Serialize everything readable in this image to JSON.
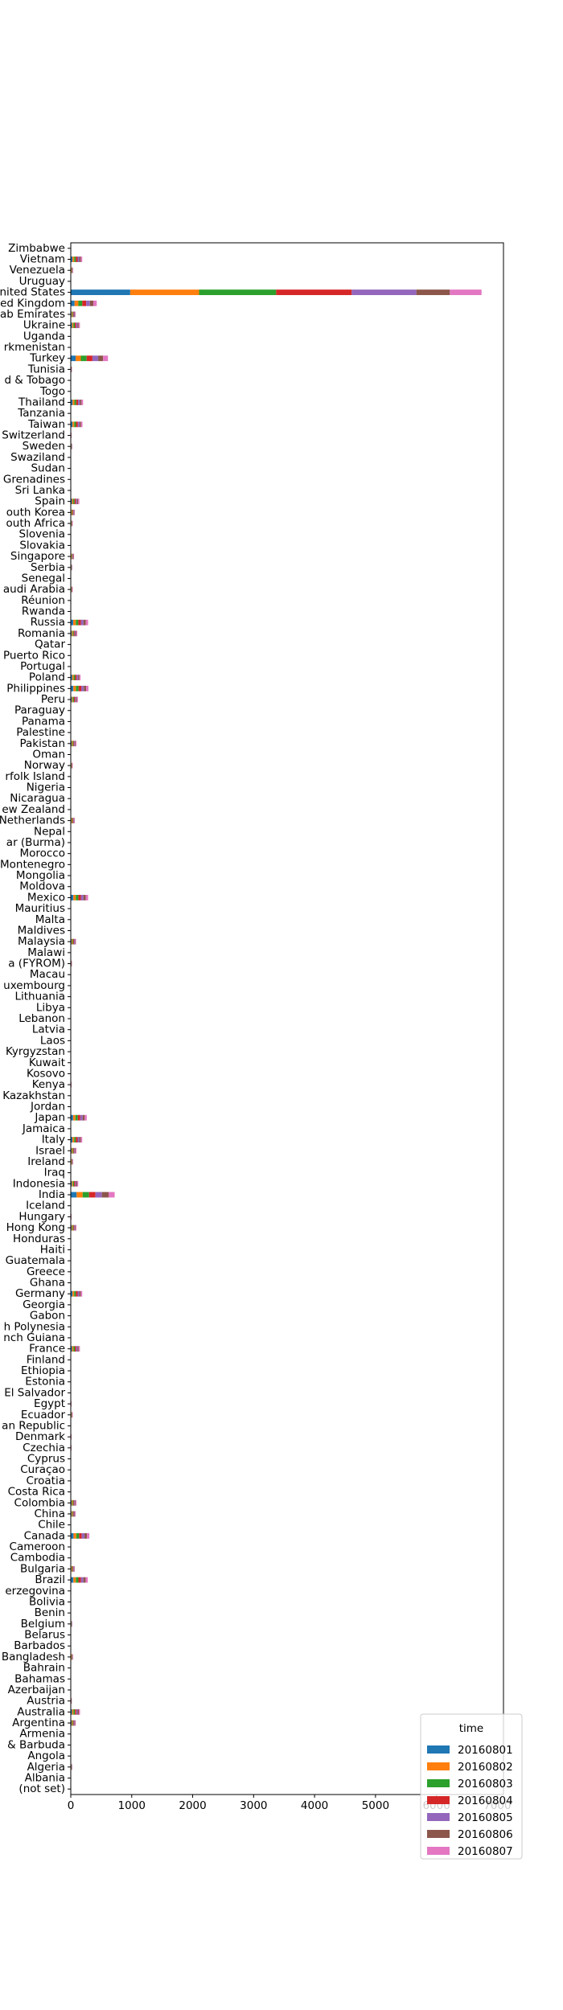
{
  "chart_data": {
    "type": "bar",
    "orientation": "horizontal",
    "stacked": true,
    "xlim": [
      0,
      7100
    ],
    "xticks": [
      0,
      1000,
      2000,
      3000,
      4000,
      5000,
      6000,
      7000
    ],
    "xtick_labels": [
      "0",
      "1000",
      "2000",
      "3000",
      "4000",
      "5000",
      "6000",
      "7000"
    ],
    "grid": false,
    "legend_position": "bottom-right",
    "legend_title": "time",
    "categories": [
      "(not set)",
      "Albania",
      "Algeria",
      "Angola",
      "& Barbuda",
      "Armenia",
      "Argentina",
      "Australia",
      "Austria",
      "Azerbaijan",
      "Bahamas",
      "Bahrain",
      "Bangladesh",
      "Barbados",
      "Belarus",
      "Belgium",
      "Benin",
      "Bolivia",
      "erzegovina",
      "Brazil",
      "Bulgaria",
      "Cambodia",
      "Cameroon",
      "Canada",
      "Chile",
      "China",
      "Colombia",
      "Costa Rica",
      "Croatia",
      "Curaçao",
      "Cyprus",
      "Czechia",
      "Denmark",
      "an Republic",
      "Ecuador",
      "Egypt",
      "El Salvador",
      "Estonia",
      "Ethiopia",
      "Finland",
      "France",
      "nch Guiana",
      "h Polynesia",
      "Gabon",
      "Georgia",
      "Germany",
      "Ghana",
      "Greece",
      "Guatemala",
      "Haiti",
      "Honduras",
      "Hong Kong",
      "Hungary",
      "Iceland",
      "India",
      "Indonesia",
      "Iraq",
      "Ireland",
      "Israel",
      "Italy",
      "Jamaica",
      "Japan",
      "Jordan",
      "Kazakhstan",
      "Kenya",
      "Kosovo",
      "Kuwait",
      "Kyrgyzstan",
      "Laos",
      "Latvia",
      "Lebanon",
      "Libya",
      "Lithuania",
      "uxembourg",
      "Macau",
      "a (FYROM)",
      "Malawi",
      "Malaysia",
      "Maldives",
      "Malta",
      "Mauritius",
      "Mexico",
      "Moldova",
      "Mongolia",
      "Montenegro",
      "Morocco",
      "ar (Burma)",
      "Nepal",
      "Netherlands",
      "ew Zealand",
      "Nicaragua",
      "Nigeria",
      "rfolk Island",
      "Norway",
      "Oman",
      "Pakistan",
      "Palestine",
      "Panama",
      "Paraguay",
      "Peru",
      "Philippines",
      "Poland",
      "Portugal",
      "Puerto Rico",
      "Qatar",
      "Romania",
      "Russia",
      "Rwanda",
      "Réunion",
      "audi Arabia",
      "Senegal",
      "Serbia",
      "Singapore",
      "Slovakia",
      "Slovenia",
      "outh Africa",
      "outh Korea",
      "Spain",
      "Sri Lanka",
      "Grenadines",
      "Sudan",
      "Swaziland",
      "Sweden",
      "Switzerland",
      "Taiwan",
      "Tanzania",
      "Thailand",
      "Togo",
      "d & Tobago",
      "Tunisia",
      "Turkey",
      "rkmenistan",
      "Uganda",
      "Ukraine",
      "ab Emirates",
      "ed Kingdom",
      "nited States",
      "Uruguay",
      "Venezuela",
      "Vietnam",
      "Zimbabwe"
    ],
    "series": [
      {
        "name": "20160801",
        "color": "#1f77b4",
        "values": [
          1,
          1,
          4,
          0,
          0,
          1,
          14,
          22,
          3,
          0,
          0,
          0,
          6,
          0,
          1,
          4,
          0,
          1,
          1,
          43,
          10,
          0,
          1,
          45,
          1,
          12,
          14,
          1,
          1,
          0,
          1,
          2,
          2,
          1,
          5,
          2,
          0,
          1,
          0,
          1,
          22,
          0,
          0,
          0,
          0,
          28,
          1,
          1,
          1,
          0,
          0,
          14,
          2,
          1,
          95,
          18,
          1,
          6,
          14,
          28,
          1,
          38,
          0,
          0,
          2,
          0,
          1,
          0,
          0,
          0,
          0,
          0,
          1,
          0,
          1,
          3,
          0,
          13,
          0,
          0,
          0,
          42,
          0,
          0,
          0,
          1,
          0,
          0,
          10,
          1,
          0,
          1,
          0,
          5,
          0,
          14,
          0,
          0,
          0,
          18,
          42,
          24,
          1,
          1,
          0,
          16,
          40,
          0,
          1,
          5,
          0,
          4,
          8,
          1,
          1,
          5,
          10,
          20,
          1,
          0,
          0,
          0,
          4,
          2,
          28,
          0,
          30,
          0,
          0,
          3,
          80,
          0,
          0,
          22,
          12,
          62,
          975,
          1,
          6,
          28,
          1
        ]
      },
      {
        "name": "20160802",
        "color": "#ff7f0e",
        "values": [
          1,
          1,
          4,
          0,
          0,
          1,
          12,
          22,
          3,
          0,
          0,
          0,
          6,
          0,
          1,
          4,
          0,
          1,
          1,
          40,
          10,
          0,
          1,
          45,
          1,
          12,
          14,
          1,
          1,
          0,
          1,
          2,
          2,
          1,
          5,
          2,
          0,
          1,
          0,
          1,
          22,
          0,
          0,
          0,
          0,
          28,
          1,
          1,
          1,
          0,
          0,
          14,
          2,
          1,
          100,
          18,
          1,
          6,
          14,
          28,
          1,
          38,
          0,
          0,
          2,
          0,
          1,
          0,
          0,
          0,
          0,
          0,
          1,
          0,
          1,
          3,
          0,
          13,
          0,
          0,
          0,
          40,
          0,
          0,
          0,
          1,
          0,
          0,
          10,
          1,
          0,
          1,
          0,
          5,
          0,
          14,
          0,
          0,
          0,
          16,
          42,
          24,
          1,
          1,
          0,
          16,
          42,
          0,
          1,
          5,
          0,
          4,
          8,
          1,
          1,
          5,
          10,
          20,
          1,
          0,
          0,
          0,
          4,
          2,
          28,
          0,
          30,
          0,
          0,
          3,
          85,
          0,
          0,
          22,
          12,
          62,
          1130,
          1,
          6,
          28,
          1
        ]
      },
      {
        "name": "20160803",
        "color": "#2ca02c",
        "values": [
          1,
          1,
          4,
          0,
          0,
          1,
          12,
          24,
          3,
          0,
          0,
          0,
          6,
          0,
          1,
          4,
          0,
          1,
          1,
          42,
          10,
          0,
          1,
          45,
          1,
          12,
          14,
          1,
          1,
          0,
          1,
          2,
          2,
          1,
          5,
          2,
          0,
          1,
          0,
          1,
          22,
          0,
          0,
          0,
          0,
          28,
          1,
          1,
          1,
          0,
          0,
          14,
          2,
          1,
          105,
          18,
          1,
          6,
          14,
          28,
          1,
          40,
          0,
          0,
          2,
          0,
          1,
          0,
          0,
          0,
          0,
          0,
          1,
          0,
          1,
          3,
          0,
          13,
          0,
          0,
          0,
          42,
          0,
          0,
          0,
          1,
          0,
          0,
          10,
          1,
          0,
          1,
          0,
          5,
          0,
          14,
          0,
          0,
          0,
          18,
          44,
          24,
          1,
          1,
          0,
          16,
          42,
          0,
          1,
          5,
          0,
          4,
          8,
          1,
          1,
          5,
          10,
          22,
          1,
          0,
          0,
          0,
          4,
          2,
          30,
          0,
          30,
          0,
          0,
          3,
          95,
          0,
          0,
          22,
          12,
          64,
          1265,
          1,
          6,
          28,
          1
        ]
      },
      {
        "name": "20160804",
        "color": "#d62728",
        "values": [
          1,
          1,
          4,
          0,
          0,
          1,
          12,
          22,
          3,
          0,
          0,
          0,
          6,
          0,
          1,
          4,
          0,
          1,
          1,
          42,
          10,
          0,
          1,
          45,
          1,
          12,
          14,
          1,
          1,
          0,
          1,
          2,
          2,
          1,
          5,
          2,
          0,
          1,
          0,
          1,
          22,
          0,
          0,
          0,
          0,
          28,
          1,
          1,
          1,
          0,
          0,
          14,
          2,
          1,
          105,
          18,
          1,
          6,
          14,
          28,
          1,
          40,
          0,
          0,
          2,
          0,
          1,
          0,
          0,
          0,
          0,
          0,
          1,
          0,
          1,
          3,
          0,
          13,
          0,
          0,
          0,
          42,
          0,
          0,
          0,
          1,
          0,
          0,
          10,
          1,
          0,
          1,
          0,
          5,
          0,
          14,
          0,
          0,
          0,
          18,
          44,
          24,
          1,
          1,
          0,
          16,
          42,
          0,
          1,
          5,
          0,
          4,
          8,
          1,
          1,
          5,
          10,
          22,
          1,
          0,
          0,
          0,
          4,
          2,
          30,
          0,
          30,
          0,
          0,
          3,
          95,
          0,
          0,
          22,
          12,
          64,
          1240,
          1,
          6,
          28,
          1
        ]
      },
      {
        "name": "20160805",
        "color": "#9467bd",
        "values": [
          1,
          1,
          4,
          0,
          0,
          1,
          12,
          22,
          3,
          0,
          0,
          0,
          6,
          0,
          1,
          4,
          0,
          1,
          1,
          40,
          10,
          0,
          1,
          45,
          1,
          12,
          14,
          1,
          1,
          0,
          1,
          2,
          2,
          1,
          5,
          2,
          0,
          1,
          0,
          1,
          22,
          0,
          0,
          0,
          0,
          28,
          1,
          1,
          1,
          0,
          0,
          14,
          2,
          1,
          105,
          18,
          1,
          6,
          14,
          28,
          1,
          38,
          0,
          0,
          2,
          0,
          1,
          0,
          0,
          0,
          0,
          0,
          1,
          0,
          1,
          3,
          0,
          13,
          0,
          0,
          0,
          42,
          0,
          0,
          0,
          1,
          0,
          0,
          10,
          1,
          0,
          1,
          0,
          5,
          0,
          14,
          0,
          0,
          0,
          16,
          42,
          24,
          1,
          1,
          0,
          16,
          42,
          0,
          1,
          5,
          0,
          4,
          8,
          1,
          1,
          5,
          10,
          20,
          1,
          0,
          0,
          0,
          4,
          2,
          28,
          0,
          30,
          0,
          0,
          3,
          95,
          0,
          0,
          22,
          12,
          62,
          1060,
          1,
          6,
          28,
          1
        ]
      },
      {
        "name": "20160806",
        "color": "#8c564b",
        "values": [
          1,
          1,
          3,
          0,
          0,
          1,
          10,
          20,
          2,
          0,
          0,
          0,
          5,
          0,
          1,
          3,
          0,
          1,
          1,
          36,
          8,
          0,
          1,
          40,
          1,
          10,
          12,
          1,
          1,
          0,
          1,
          2,
          2,
          1,
          4,
          2,
          0,
          1,
          0,
          1,
          20,
          0,
          0,
          0,
          0,
          24,
          1,
          1,
          1,
          0,
          0,
          12,
          2,
          1,
          110,
          16,
          1,
          5,
          12,
          24,
          1,
          34,
          0,
          0,
          2,
          0,
          1,
          0,
          0,
          0,
          0,
          0,
          1,
          0,
          1,
          3,
          0,
          11,
          0,
          0,
          0,
          38,
          0,
          0,
          0,
          1,
          0,
          0,
          8,
          1,
          0,
          1,
          0,
          4,
          0,
          12,
          0,
          0,
          0,
          16,
          38,
          20,
          1,
          1,
          0,
          14,
          38,
          0,
          1,
          4,
          0,
          3,
          7,
          1,
          1,
          4,
          8,
          18,
          1,
          0,
          0,
          0,
          3,
          2,
          24,
          0,
          26,
          0,
          0,
          3,
          80,
          0,
          0,
          20,
          10,
          56,
          550,
          1,
          5,
          24,
          1
        ]
      },
      {
        "name": "20160807",
        "color": "#e377c2",
        "values": [
          1,
          1,
          3,
          0,
          0,
          1,
          10,
          20,
          2,
          0,
          0,
          0,
          5,
          0,
          1,
          3,
          0,
          1,
          1,
          36,
          8,
          0,
          1,
          40,
          1,
          10,
          12,
          1,
          1,
          0,
          1,
          2,
          2,
          1,
          4,
          2,
          0,
          1,
          0,
          1,
          20,
          0,
          0,
          0,
          0,
          24,
          1,
          1,
          1,
          0,
          0,
          12,
          2,
          1,
          100,
          16,
          1,
          5,
          12,
          24,
          1,
          34,
          0,
          0,
          2,
          0,
          1,
          0,
          0,
          0,
          0,
          0,
          1,
          0,
          1,
          3,
          0,
          11,
          0,
          0,
          0,
          38,
          0,
          0,
          0,
          1,
          0,
          0,
          8,
          1,
          0,
          1,
          0,
          4,
          0,
          12,
          0,
          0,
          0,
          16,
          38,
          20,
          1,
          1,
          0,
          14,
          38,
          0,
          1,
          4,
          0,
          3,
          7,
          1,
          1,
          4,
          8,
          18,
          1,
          0,
          0,
          0,
          3,
          2,
          24,
          0,
          26,
          0,
          0,
          3,
          80,
          0,
          0,
          20,
          10,
          56,
          520,
          1,
          5,
          24,
          1
        ]
      }
    ]
  }
}
